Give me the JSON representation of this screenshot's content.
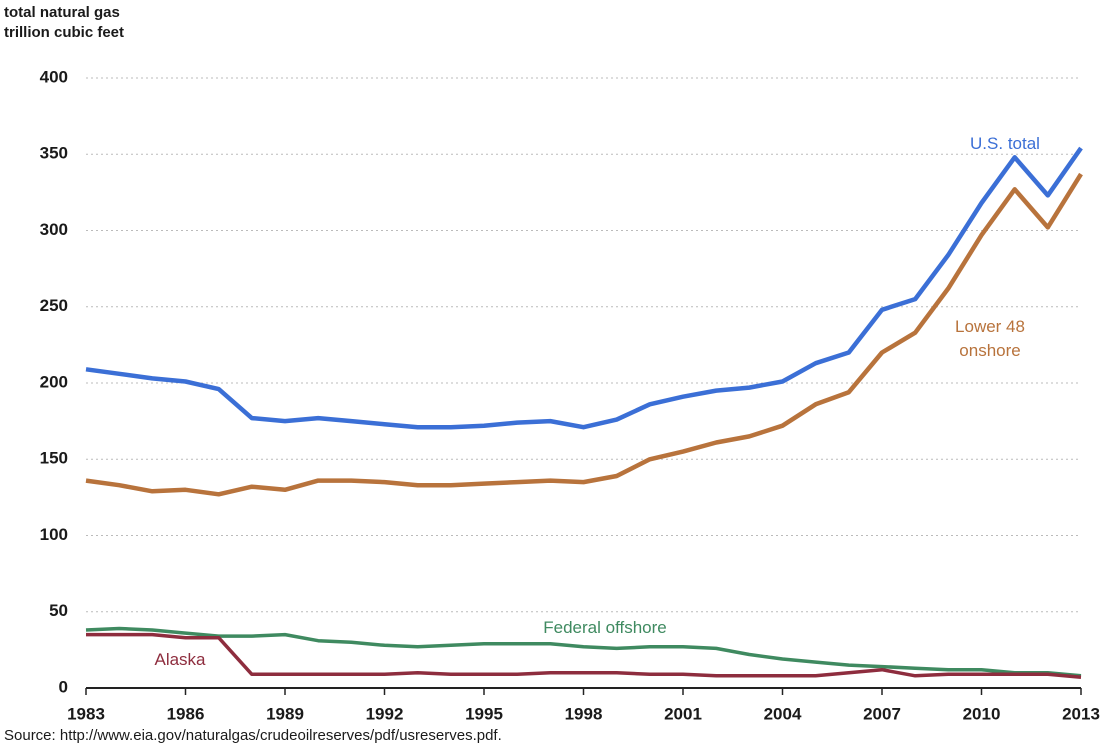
{
  "chart_data": {
    "type": "line",
    "y_label": [
      "total natural gas",
      "trillion cubic feet"
    ],
    "source": "Source: http://www.eia.gov/naturalgas/crudeoilreserves/pdf/usreserves.pdf.",
    "x": [
      1983,
      1984,
      1985,
      1986,
      1987,
      1988,
      1989,
      1990,
      1991,
      1992,
      1993,
      1994,
      1995,
      1996,
      1997,
      1998,
      1999,
      2000,
      2001,
      2002,
      2003,
      2004,
      2005,
      2006,
      2007,
      2008,
      2009,
      2010,
      2011,
      2012,
      2013
    ],
    "xlim": [
      1983,
      2013
    ],
    "xticks": [
      1983,
      1986,
      1989,
      1992,
      1995,
      1998,
      2001,
      2004,
      2007,
      2010,
      2013
    ],
    "ylim": [
      0,
      400
    ],
    "yticks": [
      0,
      50,
      100,
      150,
      200,
      250,
      300,
      350,
      400
    ],
    "grid": true,
    "series": [
      {
        "name": "U.S. total",
        "color": "#3b6fd6",
        "values": [
          209,
          206,
          203,
          201,
          196,
          177,
          175,
          177,
          175,
          173,
          171,
          171,
          172,
          174,
          175,
          171,
          176,
          186,
          191,
          195,
          197,
          201,
          213,
          220,
          248,
          255,
          284,
          318,
          348,
          323,
          354
        ]
      },
      {
        "name": "Lower 48 onshore",
        "color": "#b8733c",
        "values": [
          136,
          133,
          129,
          130,
          127,
          132,
          130,
          136,
          136,
          135,
          133,
          133,
          134,
          135,
          136,
          135,
          139,
          150,
          155,
          161,
          165,
          172,
          186,
          194,
          220,
          233,
          262,
          297,
          327,
          302,
          337
        ]
      },
      {
        "name": "Federal offshore",
        "color": "#3f8a60",
        "values": [
          38,
          39,
          38,
          36,
          34,
          34,
          35,
          31,
          30,
          28,
          27,
          28,
          29,
          29,
          29,
          27,
          26,
          27,
          27,
          26,
          22,
          19,
          17,
          15,
          14,
          13,
          12,
          12,
          10,
          10,
          8
        ]
      },
      {
        "name": "Alaska",
        "color": "#8e2d3e",
        "values": [
          35,
          35,
          35,
          33,
          33,
          9,
          9,
          9,
          9,
          9,
          10,
          9,
          9,
          9,
          10,
          10,
          10,
          9,
          9,
          8,
          8,
          8,
          8,
          10,
          12,
          8,
          9,
          9,
          9,
          9,
          7
        ]
      }
    ]
  }
}
